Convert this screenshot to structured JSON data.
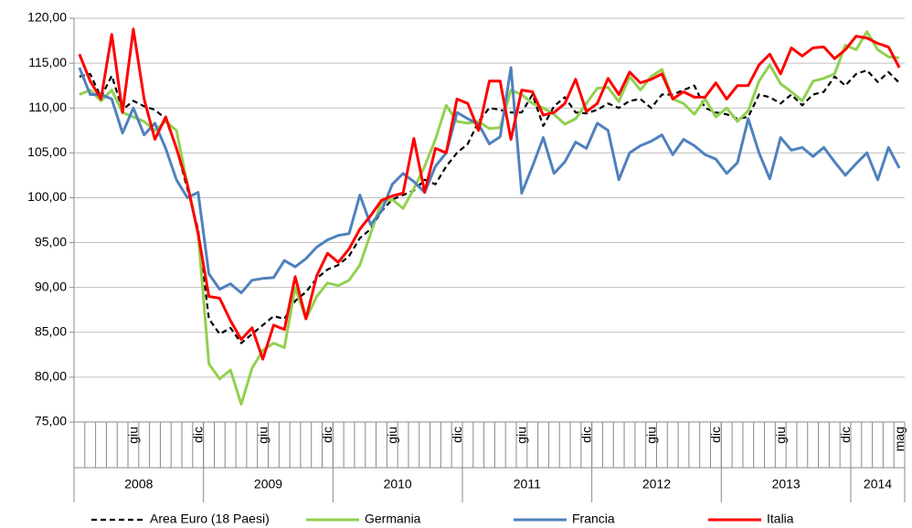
{
  "chart_data": {
    "type": "line",
    "categories": [
      null,
      null,
      null,
      null,
      null,
      "giu",
      null,
      null,
      null,
      null,
      null,
      "dic",
      null,
      null,
      null,
      null,
      null,
      "giu",
      null,
      null,
      null,
      null,
      null,
      "dic",
      null,
      null,
      null,
      null,
      null,
      "giu",
      null,
      null,
      null,
      null,
      null,
      "dic",
      null,
      null,
      null,
      null,
      null,
      "giu",
      null,
      null,
      null,
      null,
      null,
      "dic",
      null,
      null,
      null,
      null,
      null,
      "giu",
      null,
      null,
      null,
      null,
      null,
      "dic",
      null,
      null,
      null,
      null,
      null,
      "giu",
      null,
      null,
      null,
      null,
      null,
      "dic",
      null,
      null,
      null,
      null,
      "mag"
    ],
    "years": [
      "2008",
      "2009",
      "2010",
      "2011",
      "2012",
      "2013",
      "2014"
    ],
    "ylim": [
      75,
      120
    ],
    "yticks": [
      {
        "value": 75,
        "label": "75,00"
      },
      {
        "value": 80,
        "label": "80,00"
      },
      {
        "value": 85,
        "label": "85,00"
      },
      {
        "value": 90,
        "label": "90,00"
      },
      {
        "value": 95,
        "label": "95,00"
      },
      {
        "value": 100,
        "label": "100,00"
      },
      {
        "value": 105,
        "label": "105,00"
      },
      {
        "value": 110,
        "label": "110,00"
      },
      {
        "value": 115,
        "label": "115,00"
      },
      {
        "value": 120,
        "label": "120,00"
      }
    ],
    "grid": true,
    "legend": "bottom",
    "series": [
      {
        "name": "Area Euro (18 Paesi)",
        "color": "#000000",
        "dash": true,
        "values": [
          113.5,
          113.8,
          111.2,
          113.6,
          109.8,
          110.8,
          110.2,
          109.8,
          108.8,
          105.5,
          101,
          96.5,
          86.5,
          84.8,
          85.5,
          83.8,
          84.8,
          85.8,
          86.8,
          86.5,
          88.5,
          89.5,
          91,
          92,
          92.5,
          93.5,
          95.5,
          96.5,
          98.5,
          99.8,
          100.3,
          100.8,
          102,
          101.5,
          103.5,
          105,
          106,
          108.5,
          110,
          109.8,
          109.5,
          109.5,
          111.5,
          108,
          110.2,
          111.2,
          109.5,
          109.4,
          109.8,
          110.5,
          110,
          110.8,
          111,
          110,
          111.5,
          111.5,
          112,
          112.5,
          110,
          109.5,
          109.3,
          108.8,
          109,
          111.5,
          111.2,
          110.5,
          111.5,
          110.3,
          111.5,
          111.8,
          113.5,
          112.5,
          113.8,
          114.2,
          112.9,
          114,
          112.8
        ]
      },
      {
        "name": "Germania",
        "color": "#92d050",
        "values": [
          111.5,
          112,
          110.8,
          112,
          109.5,
          109,
          108.5,
          107.5,
          108.5,
          107.5,
          101.5,
          96,
          81.5,
          79.8,
          80.8,
          77,
          81,
          83,
          83.8,
          83.3,
          90,
          86.5,
          89,
          90.5,
          90.2,
          90.8,
          92.5,
          96,
          99.5,
          99.8,
          98.8,
          101,
          103.5,
          106.5,
          110.3,
          108.5,
          108.3,
          108.5,
          107.7,
          107.8,
          112,
          111.5,
          110.5,
          110,
          109.3,
          108.2,
          108.8,
          110.5,
          112.2,
          112.3,
          110.7,
          113.5,
          112,
          113.5,
          114.3,
          111,
          110.5,
          109.3,
          111,
          109,
          110,
          108.5,
          109.7,
          113,
          114.8,
          112.7,
          111.8,
          110.8,
          113,
          113.3,
          113.8,
          117,
          116.5,
          118.5,
          116.5,
          115.7,
          115.6
        ]
      },
      {
        "name": "Francia",
        "color": "#4f81bd",
        "values": [
          114.5,
          111.5,
          111.5,
          111,
          107.2,
          110,
          107,
          108.3,
          105.5,
          102,
          100,
          100.6,
          91.5,
          89.8,
          90.4,
          89.4,
          90.8,
          91,
          91.1,
          93,
          92.3,
          93.2,
          94.5,
          95.3,
          95.8,
          96,
          100.3,
          97,
          98.5,
          101.5,
          102.7,
          101.8,
          100.6,
          103.5,
          105,
          109.5,
          108.8,
          108.2,
          106,
          106.8,
          114.5,
          100.5,
          103.5,
          106.7,
          102.7,
          104,
          106.2,
          105.5,
          108.3,
          107.5,
          102,
          105,
          105.8,
          106.3,
          107,
          104.8,
          106.5,
          105.8,
          104.8,
          104.3,
          102.7,
          103.9,
          108.8,
          105,
          102.1,
          106.7,
          105.3,
          105.6,
          104.6,
          105.6,
          104,
          102.5,
          103.8,
          105,
          102,
          105.6,
          103.3
        ]
      },
      {
        "name": "Italia",
        "color": "#ff0000",
        "values": [
          116,
          113,
          111,
          118.2,
          109.5,
          118.8,
          111,
          106.5,
          109,
          105.5,
          101.5,
          96,
          89,
          88.8,
          86.3,
          84.2,
          85.5,
          82,
          85.8,
          85.3,
          91.2,
          86.5,
          91.3,
          93.8,
          92.8,
          94.3,
          96.5,
          98,
          99.7,
          100.2,
          100.5,
          106.6,
          100.6,
          105.5,
          105,
          111,
          110.5,
          107.5,
          113,
          113,
          106.5,
          112,
          111.8,
          109.2,
          109.5,
          110.5,
          113.2,
          109.6,
          110.5,
          113.3,
          111.5,
          114,
          112.8,
          113.2,
          113.8,
          111,
          111.8,
          111.2,
          111.2,
          112.8,
          111,
          112.5,
          112.5,
          114.8,
          116,
          113.8,
          116.7,
          115.8,
          116.7,
          116.8,
          115.5,
          116.5,
          118,
          117.8,
          117.2,
          116.8,
          114.5
        ]
      }
    ]
  }
}
